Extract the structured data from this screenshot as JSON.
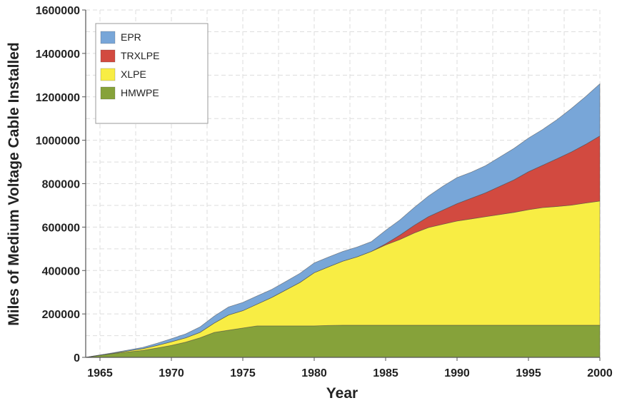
{
  "chart_data": {
    "type": "area",
    "stacked": true,
    "title": "",
    "xlabel": "Year",
    "ylabel": "Miles of Medium Voltage Cable Installed",
    "xlim": [
      1964,
      2000
    ],
    "ylim": [
      0,
      1600000
    ],
    "x_ticks": [
      1965,
      1970,
      1975,
      1980,
      1985,
      1990,
      1995,
      2000
    ],
    "x_tick_labels": [
      "1965",
      "1970",
      "1975",
      "1980",
      "1985",
      "1990",
      "1995",
      "2000"
    ],
    "y_ticks": [
      0,
      200000,
      400000,
      600000,
      800000,
      1000000,
      1200000,
      1400000,
      1600000
    ],
    "y_tick_labels": [
      "0",
      "200000",
      "400000",
      "600000",
      "800000",
      "1000000",
      "1200000",
      "1400000",
      "1600000"
    ],
    "grid": true,
    "legend_position": "top-left",
    "x": [
      1964,
      1965,
      1966,
      1967,
      1968,
      1969,
      1970,
      1971,
      1972,
      1973,
      1974,
      1975,
      1976,
      1977,
      1978,
      1979,
      1980,
      1981,
      1982,
      1983,
      1984,
      1985,
      1986,
      1987,
      1988,
      1989,
      1990,
      1991,
      1992,
      1993,
      1994,
      1995,
      1996,
      1997,
      1998,
      1999,
      2000
    ],
    "series": [
      {
        "name": "HMWPE",
        "color": "#86a23a",
        "values": [
          0,
          10000,
          18000,
          25000,
          32000,
          43000,
          55000,
          70000,
          90000,
          115000,
          125000,
          135000,
          145000,
          145000,
          145000,
          145000,
          145000,
          147000,
          148000,
          148000,
          148000,
          148000,
          148000,
          148000,
          148000,
          148000,
          148000,
          148000,
          148000,
          148000,
          148000,
          148000,
          148000,
          148000,
          148000,
          148000,
          148000
        ]
      },
      {
        "name": "XLPE",
        "color": "#f8ed44",
        "values": [
          0,
          0,
          2000,
          5000,
          8000,
          12000,
          17000,
          20000,
          25000,
          43000,
          70000,
          80000,
          100000,
          130000,
          165000,
          200000,
          245000,
          270000,
          295000,
          315000,
          340000,
          370000,
          395000,
          425000,
          450000,
          465000,
          480000,
          490000,
          500000,
          510000,
          520000,
          532000,
          542000,
          547000,
          553000,
          563000,
          572000
        ]
      },
      {
        "name": "TRXLPE",
        "color": "#d24a40",
        "values": [
          0,
          0,
          0,
          0,
          0,
          0,
          0,
          0,
          0,
          0,
          0,
          0,
          0,
          0,
          0,
          0,
          0,
          0,
          0,
          0,
          0,
          5000,
          20000,
          35000,
          50000,
          65000,
          80000,
          95000,
          110000,
          130000,
          150000,
          175000,
          195000,
          220000,
          245000,
          270000,
          300000
        ]
      },
      {
        "name": "EPR",
        "color": "#78a6d8",
        "values": [
          0,
          1000,
          2000,
          4000,
          6000,
          10000,
          14000,
          18000,
          25000,
          32000,
          37000,
          38000,
          38000,
          37000,
          39000,
          42000,
          45000,
          45000,
          45000,
          45000,
          45000,
          62000,
          70000,
          82000,
          95000,
          110000,
          120000,
          120000,
          125000,
          135000,
          145000,
          155000,
          165000,
          180000,
          200000,
          220000,
          240000
        ]
      }
    ]
  }
}
